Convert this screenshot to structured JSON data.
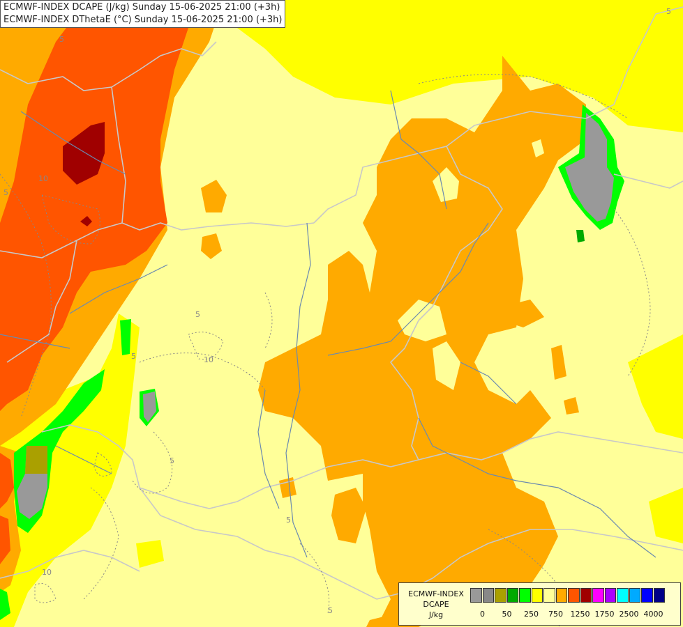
{
  "header": {
    "line1": "ECMWF-INDEX DCAPE (J/kg) Sunday 15-06-2025 21:00 (+3h)",
    "line2": "ECMWF-INDEX DThetaE (°C) Sunday 15-06-2025 21:00 (+3h)"
  },
  "legend": {
    "line1": "ECMWF-INDEX",
    "line2": "DCAPE",
    "line3": "J/kg",
    "colors": [
      "#999999",
      "#888888",
      "#aaa000",
      "#00aa00",
      "#00ff00",
      "#ffff00",
      "#ffff99",
      "#ffaa00",
      "#ff5500",
      "#a00000",
      "#ff00ff",
      "#aa00ff",
      "#00ffff",
      "#00aaff",
      "#0000ff",
      "#000088"
    ],
    "ticks": [
      "0",
      "50",
      "250",
      "750",
      "1250",
      "1750",
      "2500",
      "4000"
    ]
  },
  "contour_labels": [
    "5",
    "10",
    "5",
    "5",
    "5",
    "5",
    "10",
    "5",
    "5",
    "10",
    "5",
    "5"
  ],
  "colors": {
    "base": "#ffff99",
    "yellow": "#ffff00",
    "orange": "#ffaa00",
    "dark_orange": "#ff5500",
    "dark_red": "#a00000",
    "green": "#00ff00",
    "gray": "#999999",
    "olive": "#aaa000",
    "border": "#c8c8c8",
    "river": "#6a8ab0"
  }
}
